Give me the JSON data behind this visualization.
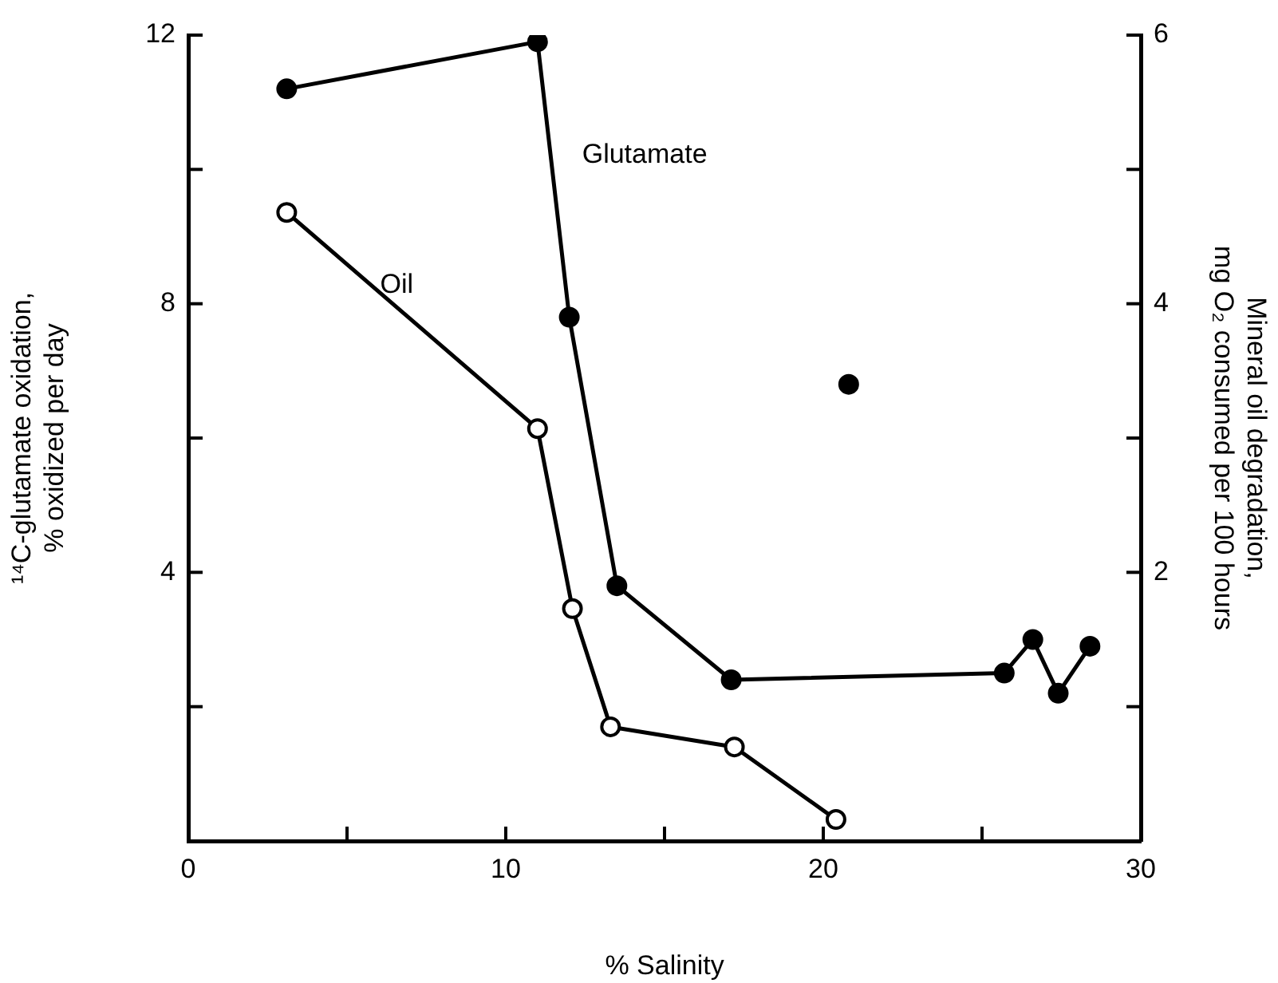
{
  "chart_data": {
    "type": "line",
    "xlabel": "% Salinity",
    "ylabel": [
      "¹⁴C-glutamate oxidation,",
      "% oxidized per day"
    ],
    "y2label": [
      "Mineral oil degradation,",
      "mg O₂ consumed per 100 hours"
    ],
    "xlim": [
      0,
      30
    ],
    "xticks": [
      0,
      {
        "value": 5,
        "label": null
      },
      10,
      {
        "value": 15,
        "label": null
      },
      20,
      {
        "value": 25,
        "label": null
      },
      30
    ],
    "ylim": [
      0,
      12
    ],
    "yticks": [
      {
        "value": 2,
        "label": null
      },
      4,
      {
        "value": 6,
        "label": null
      },
      8,
      {
        "value": 10,
        "label": null
      },
      12
    ],
    "y2lim": [
      0,
      6
    ],
    "y2ticks": [
      {
        "value": 1,
        "label": null
      },
      2,
      {
        "value": 3,
        "label": null
      },
      4,
      {
        "value": 5,
        "label": null
      },
      6
    ],
    "grid": false,
    "legend": false,
    "marker": "circle",
    "line_style": "solid",
    "series": [
      {
        "name": "Glutamate",
        "color": "#000000",
        "x": [
          3.1,
          11.0,
          12.0,
          13.5,
          17.1,
          25.7,
          26.6,
          27.4,
          28.4
        ],
        "values": [
          11.2,
          11.9,
          7.8,
          3.8,
          2.4,
          2.5,
          3.0,
          2.2,
          2.9
        ]
      },
      {
        "type": "scatter",
        "color": "#000000",
        "x": [
          20.8
        ],
        "values": [
          6.8
        ]
      },
      {
        "name": "Oil",
        "axis": "y2",
        "color": "#000000",
        "x": [
          3.1,
          11.0,
          12.1,
          13.3,
          17.2,
          20.4
        ],
        "values": [
          4.68,
          3.07,
          1.73,
          0.85,
          0.7,
          0.16
        ]
      }
    ]
  }
}
